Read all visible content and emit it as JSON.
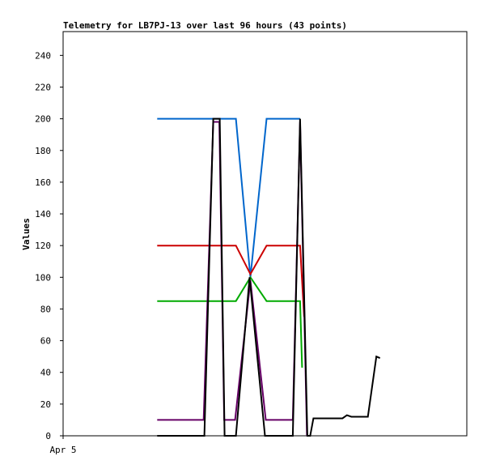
{
  "chart_data": {
    "type": "line",
    "title": "Telemetry for LB7PJ-13 over last 96 hours (43 points)",
    "xlabel": "",
    "ylabel": "Values",
    "ylim": [
      0,
      255
    ],
    "yticks": [
      0,
      20,
      40,
      60,
      80,
      100,
      120,
      140,
      160,
      180,
      200,
      220,
      240
    ],
    "xlim": [
      0,
      100
    ],
    "xtick_labels": [
      {
        "x": 0,
        "label": "Apr 5"
      }
    ],
    "grid": false,
    "series": [
      {
        "color": "#0066cc",
        "x": [
          23.3,
          42.8,
          46.4,
          50.4,
          58.7
        ],
        "y": [
          200,
          200,
          100,
          200,
          200
        ]
      },
      {
        "color": "#cc0000",
        "x": [
          23.3,
          42.8,
          46.4,
          50.4,
          58.7,
          59.7
        ],
        "y": [
          120,
          120,
          102,
          120,
          120,
          75
        ]
      },
      {
        "color": "#00aa00",
        "x": [
          23.3,
          42.8,
          46.4,
          50.4,
          58.7,
          59.2
        ],
        "y": [
          85,
          85,
          100,
          85,
          85,
          43
        ]
      },
      {
        "color": "#660066",
        "x": [
          23.3,
          34.8,
          37.2,
          38.7,
          39.9,
          42.6,
          46.4,
          50.2,
          56.9,
          58.7,
          60.4
        ],
        "y": [
          10,
          10,
          198,
          198,
          10,
          10,
          98,
          10,
          10,
          198,
          0
        ]
      },
      {
        "color": "#000000",
        "x": [
          23.3,
          35.0,
          37.2,
          38.8,
          40.0,
          42.8,
          46.2,
          50.0,
          56.9,
          58.7,
          60.5,
          61.2,
          62.0,
          69.2,
          70.3,
          71.4,
          72.7,
          75.5,
          77.6,
          78.5
        ],
        "y": [
          0,
          0,
          200,
          200,
          0,
          0,
          100,
          0,
          0,
          200,
          0,
          0,
          11,
          11,
          13,
          12,
          12,
          12,
          50,
          49
        ]
      }
    ]
  }
}
